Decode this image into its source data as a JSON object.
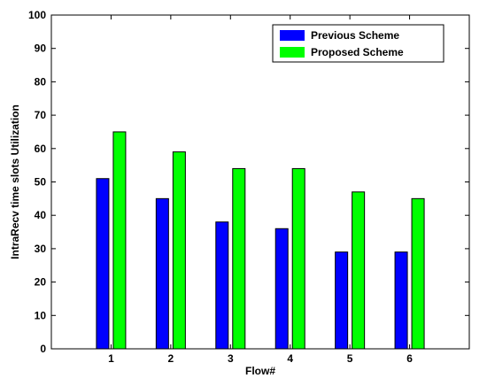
{
  "chart_data": {
    "type": "bar",
    "categories": [
      "1",
      "2",
      "3",
      "4",
      "5",
      "6"
    ],
    "series": [
      {
        "name": "Previous Scheme",
        "values": [
          51,
          45,
          38,
          36,
          29,
          29
        ],
        "color": "#0000ff"
      },
      {
        "name": "Proposed Scheme",
        "values": [
          65,
          59,
          54,
          54,
          47,
          45
        ],
        "color": "#00ff00"
      }
    ],
    "title": "",
    "xlabel": "Flow#",
    "ylabel": "IntraRecv time slots Utilization",
    "ylim": [
      0,
      100
    ],
    "yticks": [
      0,
      10,
      20,
      30,
      40,
      50,
      60,
      70,
      80,
      90,
      100
    ],
    "xlim": [
      0,
      7
    ],
    "grid": false,
    "legend_position": "top-right"
  }
}
